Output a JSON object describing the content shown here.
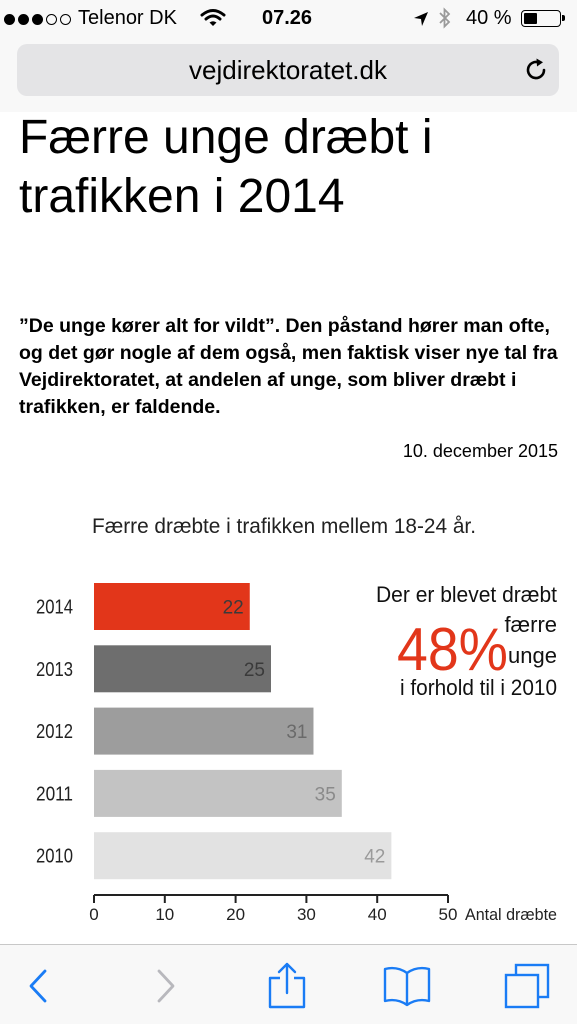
{
  "status_bar": {
    "carrier": "Telenor DK",
    "time": "07.26",
    "battery": "40 %",
    "battery_level": 0.4,
    "signal_filled": 3,
    "signal_total": 5
  },
  "browser": {
    "url": "vejdirektoratet.dk",
    "reload_icon": "reload-icon"
  },
  "article": {
    "title": "Færre unge dræbt i trafikken i 2014",
    "lead": "”De unge kører alt for vildt”. Den påstand hører man ofte, og det gør nogle af dem også, men faktisk viser nye tal fra Vejdirektoratet, at andelen af unge, som bliver dræbt i trafikken, er faldende.",
    "date": "10. december 2015"
  },
  "chart_data": {
    "type": "bar",
    "orientation": "horizontal",
    "title": "Færre dræbte i trafikken mellem 18-24 år.",
    "categories": [
      "2014",
      "2013",
      "2012",
      "2011",
      "2010"
    ],
    "values": [
      22,
      25,
      31,
      35,
      42
    ],
    "bar_colors": [
      "#e2361a",
      "#6e6e6e",
      "#9d9d9d",
      "#c3c3c3",
      "#e2e2e2"
    ],
    "value_label_colors": [
      "#3a3a3a",
      "#3a3a3a",
      "#6a6a6a",
      "#8a8a8a",
      "#9a9a9a"
    ],
    "xlabel": "Antal dræbte",
    "xlim": [
      0,
      50
    ],
    "xticks": [
      0,
      10,
      20,
      30,
      40,
      50
    ],
    "grid": false,
    "annotation": {
      "line1": "Der er blevet dræbt",
      "percent": "48%",
      "word_a": "færre",
      "word_b": "unge",
      "line4": "i forhold til i 2010",
      "percent_color": "#e2361a"
    }
  },
  "toolbar": {
    "icons": [
      "back-icon",
      "forward-icon",
      "share-icon",
      "bookmarks-icon",
      "tabs-icon"
    ],
    "accent": "#1a7cf5",
    "disabled": "#b8b8bd"
  }
}
